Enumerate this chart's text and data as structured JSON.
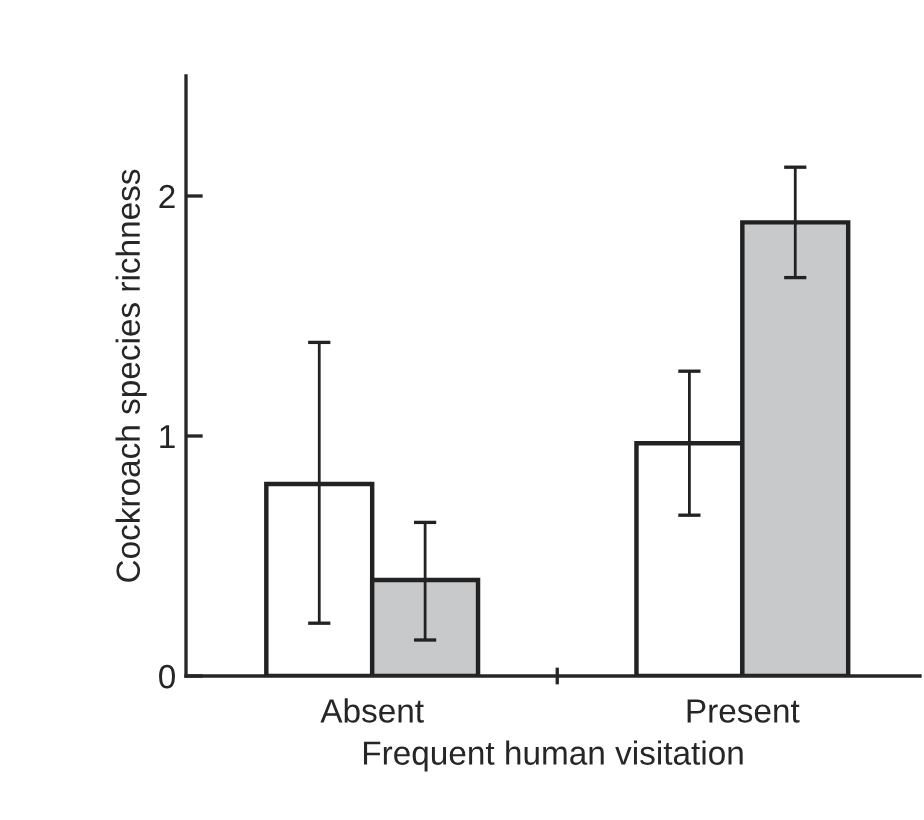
{
  "chart_data": {
    "type": "bar",
    "xlabel": "Frequent human visitation",
    "ylabel": "Cockroach species richness",
    "categories": [
      "Absent",
      "Present"
    ],
    "series": [
      {
        "color": "#ffffff",
        "values": [
          0.8,
          0.97
        ],
        "errors": [
          [
            0.22,
            1.39
          ],
          [
            0.67,
            1.27
          ]
        ]
      },
      {
        "color": "#c8c9cb",
        "values": [
          0.4,
          1.89
        ],
        "errors": [
          [
            0.15,
            0.64
          ],
          [
            1.66,
            2.12
          ]
        ]
      }
    ],
    "ylim": [
      0,
      2.5
    ],
    "yticks": [
      0,
      1,
      2
    ],
    "grid": false,
    "legend": false
  }
}
